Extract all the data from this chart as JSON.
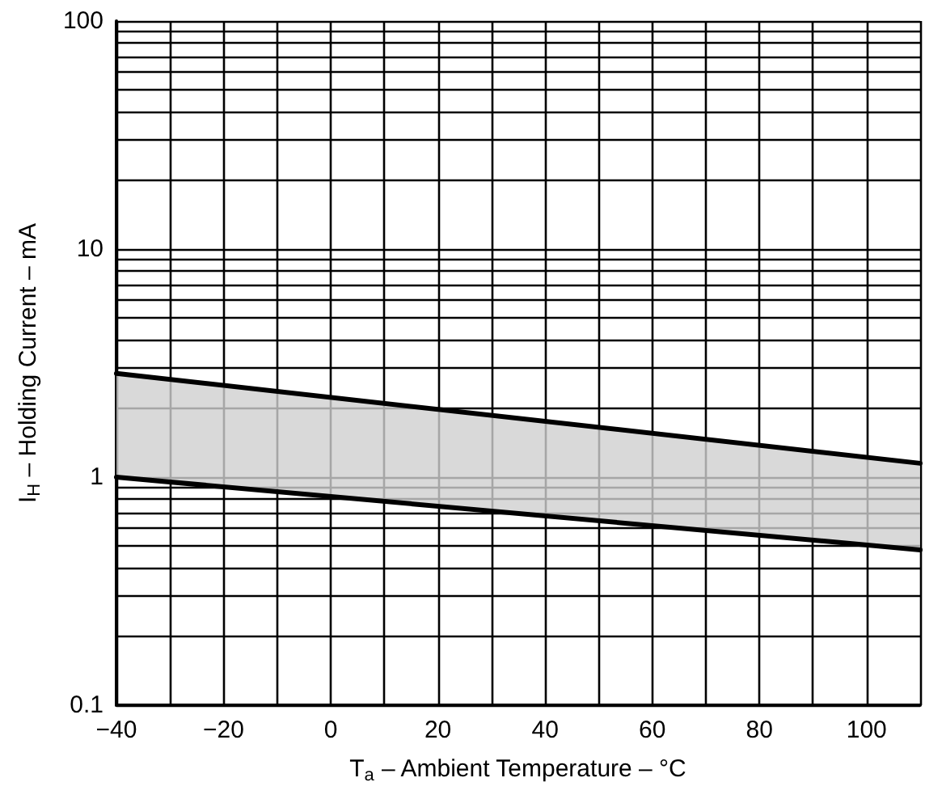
{
  "chart_data": {
    "type": "line",
    "xlabel": "T$_{a}$ – Ambient Temperature – °C",
    "ylabel": "I$_{H}$ – Holding Current – mA",
    "x": [
      -40,
      110
    ],
    "series": [
      {
        "color": "#000000",
        "values": [
          2.85,
          1.15
        ],
        "lower": [
          1.0,
          0.48
        ],
        "upper": [
          2.85,
          1.15
        ]
      },
      {
        "color": "#000000",
        "values": [
          1.0,
          0.48
        ]
      }
    ],
    "xlim": [
      -40,
      110
    ],
    "xticks": [
      -40,
      {
        "value": -30,
        "label": null
      },
      -20,
      {
        "value": -10,
        "label": null
      },
      0,
      {
        "value": 10,
        "label": null
      },
      20,
      {
        "value": 30,
        "label": null
      },
      40,
      {
        "value": 50,
        "label": null
      },
      60,
      {
        "value": 70,
        "label": null
      },
      80,
      {
        "value": 90,
        "label": null
      },
      100,
      {
        "value": 110,
        "label": null
      }
    ],
    "ylim": [
      0.1,
      100
    ],
    "yticks": [
      0.1,
      {
        "value": 0.2,
        "label": null
      },
      {
        "value": 0.3,
        "label": null
      },
      {
        "value": 0.4,
        "label": null
      },
      {
        "value": 0.5,
        "label": null
      },
      {
        "value": 0.6,
        "label": null
      },
      {
        "value": 0.7,
        "label": null
      },
      {
        "value": 0.8,
        "label": null
      },
      {
        "value": 0.9,
        "label": null
      },
      1,
      {
        "value": 2,
        "label": null
      },
      {
        "value": 3,
        "label": null
      },
      {
        "value": 4,
        "label": null
      },
      {
        "value": 5,
        "label": null
      },
      {
        "value": 6,
        "label": null
      },
      {
        "value": 7,
        "label": null
      },
      {
        "value": 8,
        "label": null
      },
      {
        "value": 9,
        "label": null
      },
      10,
      {
        "value": 20,
        "label": null
      },
      {
        "value": 30,
        "label": null
      },
      {
        "value": 40,
        "label": null
      },
      {
        "value": 50,
        "label": null
      },
      {
        "value": 60,
        "label": null
      },
      {
        "value": 70,
        "label": null
      },
      {
        "value": 80,
        "label": null
      },
      {
        "value": 90,
        "label": null
      },
      100
    ],
    "log": "y",
    "grid": true,
    "marker": "none",
    "line_style": "solid"
  }
}
